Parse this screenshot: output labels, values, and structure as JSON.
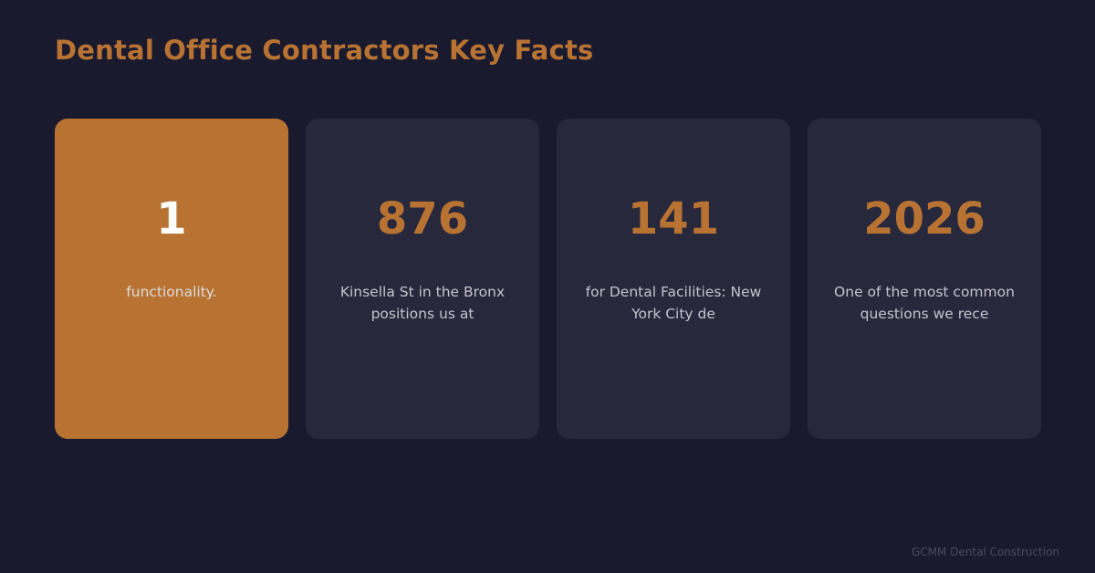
{
  "page": {
    "title": "Dental Office Contractors Key Facts",
    "footer": "GCMM Dental Construction"
  },
  "colors": {
    "background": "#1a1a2e",
    "card": "#27283c",
    "accent": "#b87333",
    "text_muted": "#c4c4cc"
  },
  "cards": [
    {
      "value": "1",
      "description": "functionality.",
      "highlighted": true
    },
    {
      "value": "876",
      "description": "Kinsella St in the Bronx positions us at",
      "highlighted": false
    },
    {
      "value": "141",
      "description": "for Dental Facilities: New York City de",
      "highlighted": false
    },
    {
      "value": "2026",
      "description": "One of the most common questions we rece",
      "highlighted": false
    }
  ]
}
